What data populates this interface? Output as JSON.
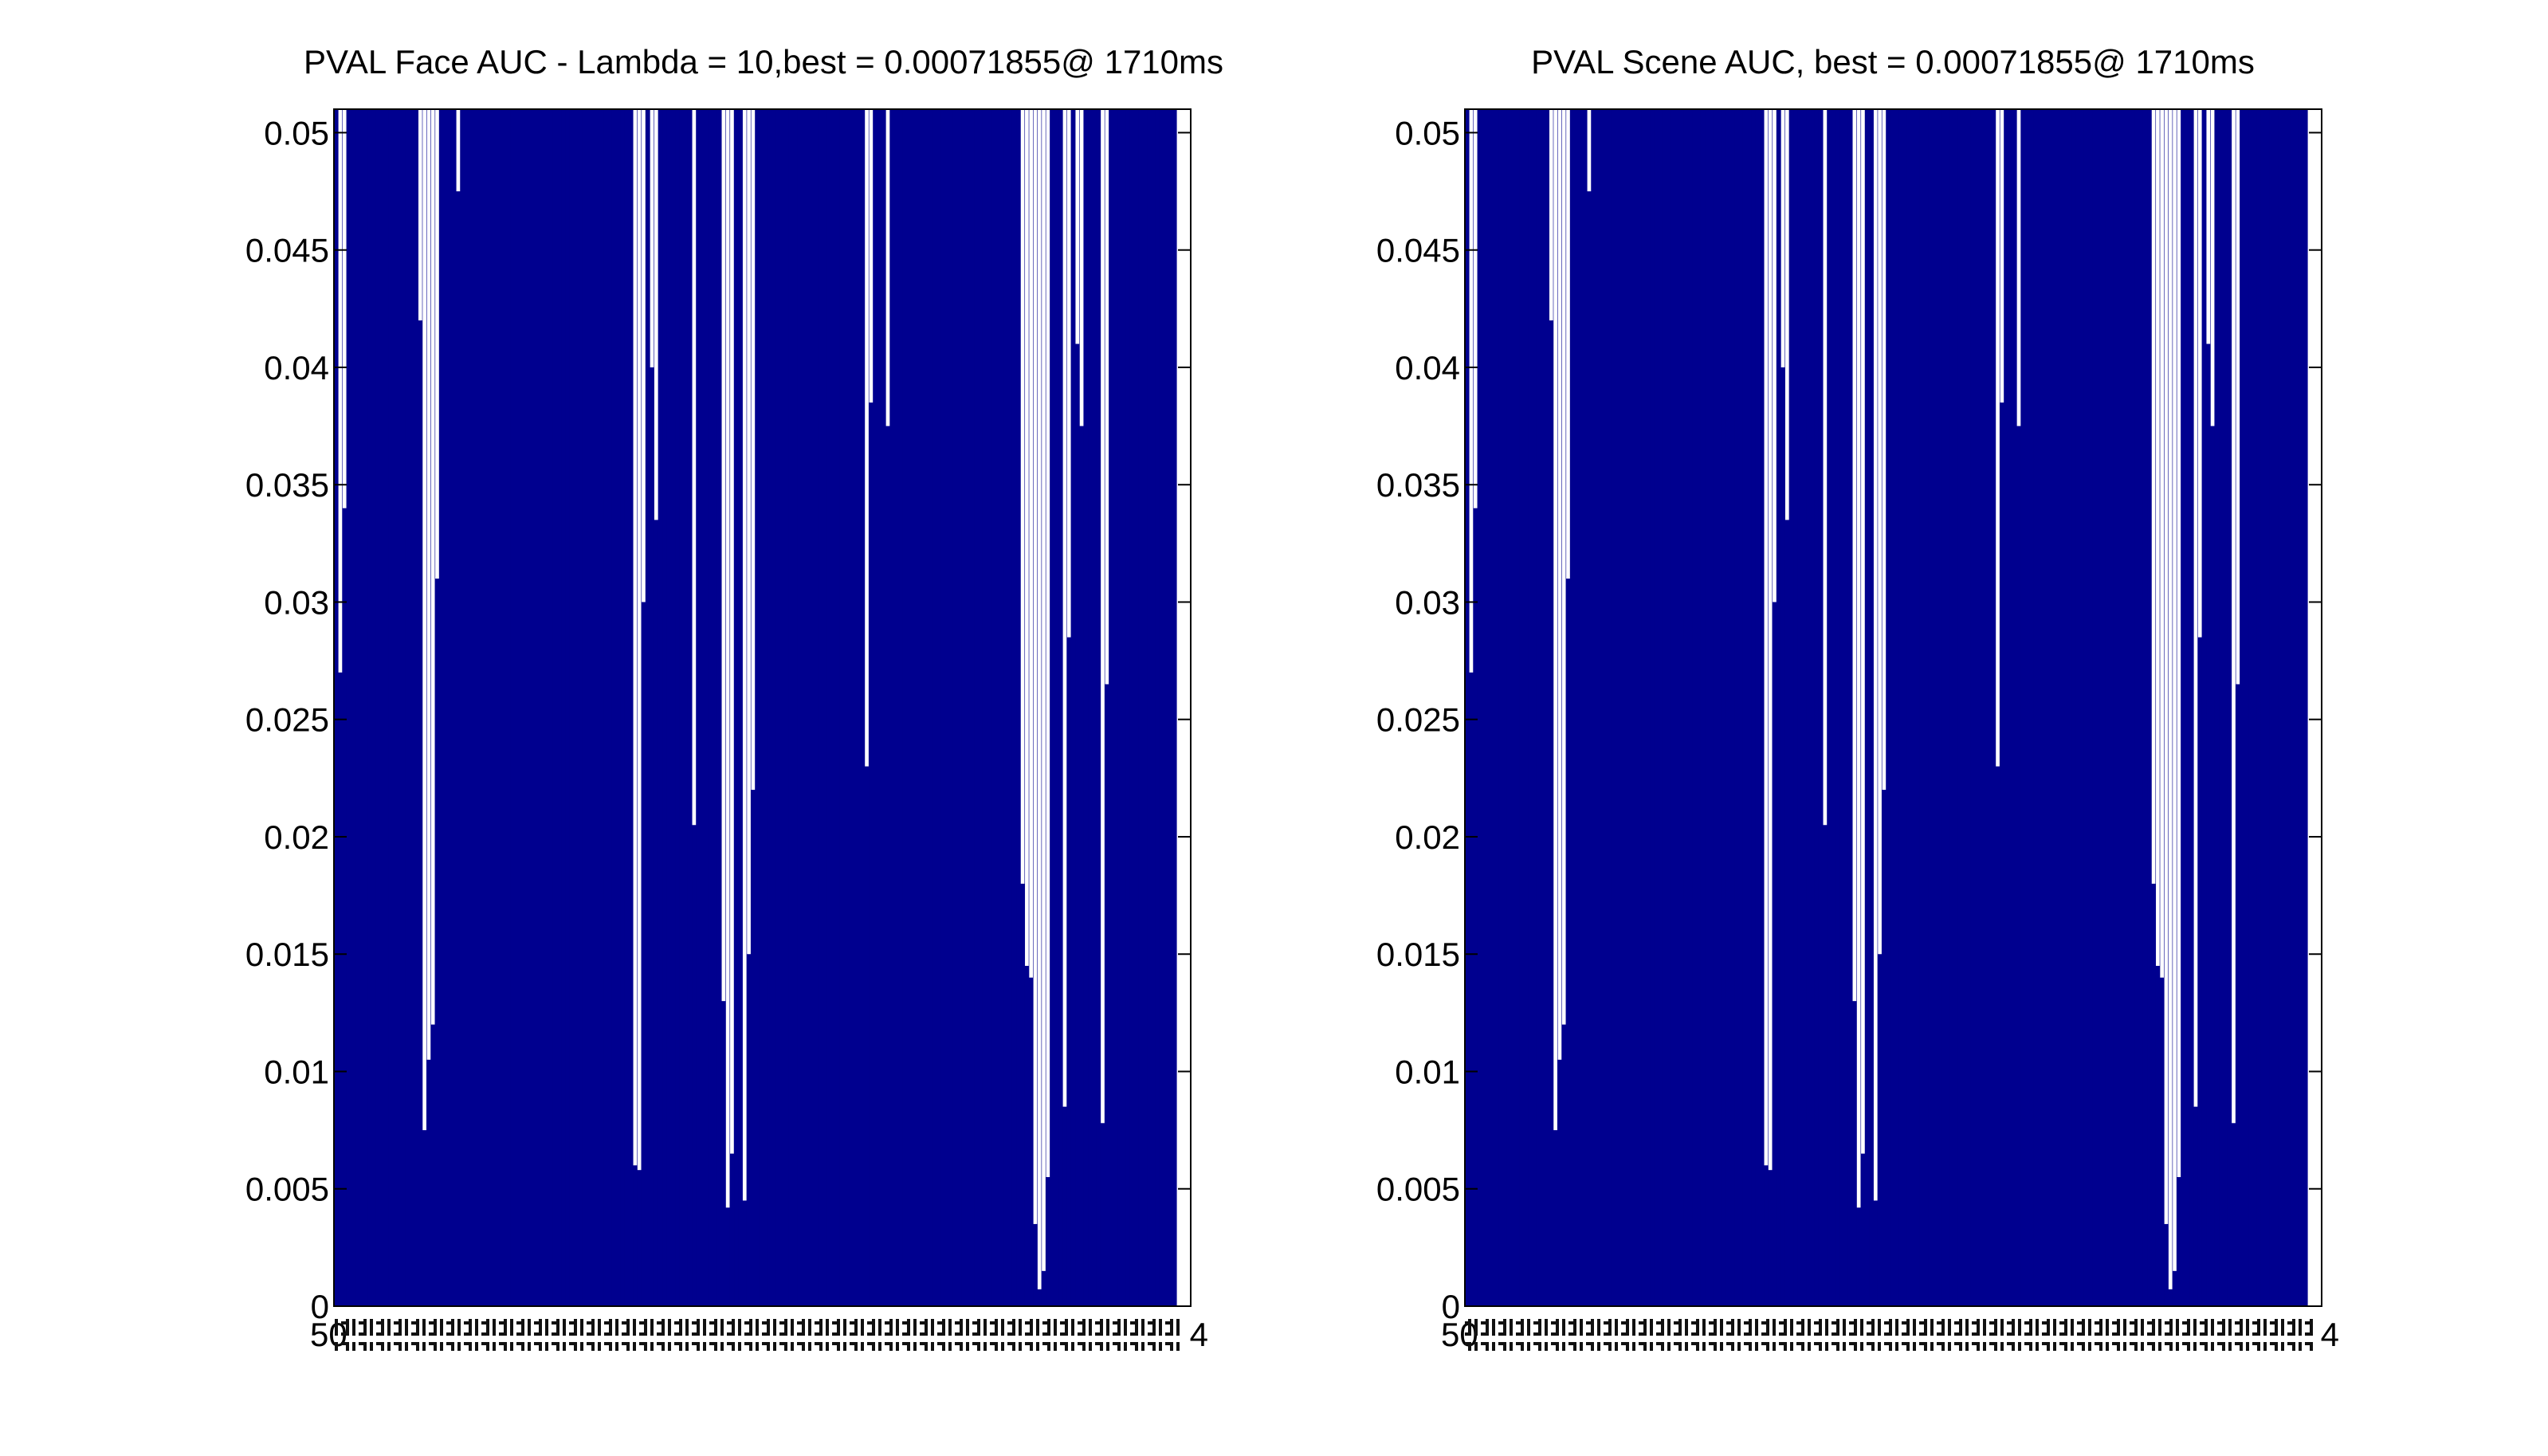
{
  "figure": {
    "background": "#ffffff",
    "bar_color": "#00008f",
    "axes_color": "#000000"
  },
  "chart_data": [
    {
      "type": "bar",
      "title": "PVAL Face AUC - Lambda = 10,best = 0.00071855@ 1710ms",
      "xlabel": "",
      "ylabel": "",
      "ylim": [
        0,
        0.051
      ],
      "yticks": [
        "0",
        "0.005",
        "0.01",
        "0.015",
        "0.02",
        "0.025",
        "0.03",
        "0.035",
        "0.04",
        "0.045",
        "0.05"
      ],
      "grid": false,
      "legend": "none",
      "x_tick_label_first": "50",
      "x_tick_label_last": "4",
      "n_bars": 200,
      "dips": [
        {
          "bar": 1,
          "value": 0.027
        },
        {
          "bar": 2,
          "value": 0.034
        },
        {
          "bar": 20,
          "value": 0.042
        },
        {
          "bar": 21,
          "value": 0.0075
        },
        {
          "bar": 22,
          "value": 0.0105
        },
        {
          "bar": 23,
          "value": 0.012
        },
        {
          "bar": 24,
          "value": 0.031
        },
        {
          "bar": 29,
          "value": 0.0475
        },
        {
          "bar": 71,
          "value": 0.006
        },
        {
          "bar": 72,
          "value": 0.0058
        },
        {
          "bar": 73,
          "value": 0.03
        },
        {
          "bar": 75,
          "value": 0.04
        },
        {
          "bar": 76,
          "value": 0.0335
        },
        {
          "bar": 85,
          "value": 0.0205
        },
        {
          "bar": 92,
          "value": 0.013
        },
        {
          "bar": 93,
          "value": 0.0042
        },
        {
          "bar": 94,
          "value": 0.0065
        },
        {
          "bar": 97,
          "value": 0.0045
        },
        {
          "bar": 98,
          "value": 0.015
        },
        {
          "bar": 99,
          "value": 0.022
        },
        {
          "bar": 126,
          "value": 0.023
        },
        {
          "bar": 127,
          "value": 0.0385
        },
        {
          "bar": 131,
          "value": 0.0375
        },
        {
          "bar": 163,
          "value": 0.018
        },
        {
          "bar": 164,
          "value": 0.0145
        },
        {
          "bar": 165,
          "value": 0.014
        },
        {
          "bar": 166,
          "value": 0.0035
        },
        {
          "bar": 167,
          "value": 0.00072
        },
        {
          "bar": 168,
          "value": 0.0015
        },
        {
          "bar": 169,
          "value": 0.0055
        },
        {
          "bar": 173,
          "value": 0.0085
        },
        {
          "bar": 174,
          "value": 0.0285
        },
        {
          "bar": 176,
          "value": 0.041
        },
        {
          "bar": 177,
          "value": 0.0375
        },
        {
          "bar": 182,
          "value": 0.0078
        },
        {
          "bar": 183,
          "value": 0.0265
        }
      ]
    },
    {
      "type": "bar",
      "title": "PVAL Scene AUC, best = 0.00071855@ 1710ms",
      "xlabel": "",
      "ylabel": "",
      "ylim": [
        0,
        0.051
      ],
      "yticks": [
        "0",
        "0.005",
        "0.01",
        "0.015",
        "0.02",
        "0.025",
        "0.03",
        "0.035",
        "0.04",
        "0.045",
        "0.05"
      ],
      "grid": false,
      "legend": "none",
      "x_tick_label_first": "50",
      "x_tick_label_last": "4",
      "n_bars": 200,
      "dips": [
        {
          "bar": 1,
          "value": 0.027
        },
        {
          "bar": 2,
          "value": 0.034
        },
        {
          "bar": 20,
          "value": 0.042
        },
        {
          "bar": 21,
          "value": 0.0075
        },
        {
          "bar": 22,
          "value": 0.0105
        },
        {
          "bar": 23,
          "value": 0.012
        },
        {
          "bar": 24,
          "value": 0.031
        },
        {
          "bar": 29,
          "value": 0.0475
        },
        {
          "bar": 71,
          "value": 0.006
        },
        {
          "bar": 72,
          "value": 0.0058
        },
        {
          "bar": 73,
          "value": 0.03
        },
        {
          "bar": 75,
          "value": 0.04
        },
        {
          "bar": 76,
          "value": 0.0335
        },
        {
          "bar": 85,
          "value": 0.0205
        },
        {
          "bar": 92,
          "value": 0.013
        },
        {
          "bar": 93,
          "value": 0.0042
        },
        {
          "bar": 94,
          "value": 0.0065
        },
        {
          "bar": 97,
          "value": 0.0045
        },
        {
          "bar": 98,
          "value": 0.015
        },
        {
          "bar": 99,
          "value": 0.022
        },
        {
          "bar": 126,
          "value": 0.023
        },
        {
          "bar": 127,
          "value": 0.0385
        },
        {
          "bar": 131,
          "value": 0.0375
        },
        {
          "bar": 163,
          "value": 0.018
        },
        {
          "bar": 164,
          "value": 0.0145
        },
        {
          "bar": 165,
          "value": 0.014
        },
        {
          "bar": 166,
          "value": 0.0035
        },
        {
          "bar": 167,
          "value": 0.00072
        },
        {
          "bar": 168,
          "value": 0.0015
        },
        {
          "bar": 169,
          "value": 0.0055
        },
        {
          "bar": 173,
          "value": 0.0085
        },
        {
          "bar": 174,
          "value": 0.0285
        },
        {
          "bar": 176,
          "value": 0.041
        },
        {
          "bar": 177,
          "value": 0.0375
        },
        {
          "bar": 182,
          "value": 0.0078
        },
        {
          "bar": 183,
          "value": 0.0265
        }
      ]
    }
  ]
}
